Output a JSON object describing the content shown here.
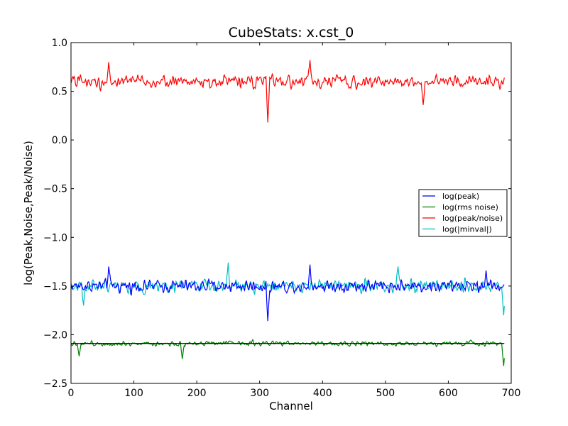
{
  "chart_data": {
    "type": "line",
    "title": "CubeStats: x.cst_0",
    "xlabel": "Channel",
    "ylabel": "log(Peak,Noise,Peak/Noise)",
    "xlim": [
      0,
      700
    ],
    "ylim": [
      -2.5,
      1.0
    ],
    "xticks": [
      0,
      100,
      200,
      300,
      400,
      500,
      600,
      700
    ],
    "yticks": [
      -2.5,
      -2.0,
      -1.5,
      -1.0,
      -0.5,
      0.0,
      0.5,
      1.0
    ],
    "xtick_labels": [
      "0",
      "100",
      "200",
      "300",
      "400",
      "500",
      "600",
      "700"
    ],
    "ytick_labels": [
      "−2.5",
      "−2.0",
      "−1.5",
      "−1.0",
      "−0.5",
      "0.0",
      "0.5",
      "1.0"
    ],
    "grid": false,
    "legend_position": "right",
    "n_channels": 690,
    "series": [
      {
        "name": "log(peak)",
        "color": "#0000ff",
        "mean": -1.5,
        "spread": 0.09,
        "features": [
          {
            "x": 60,
            "value": -1.3
          },
          {
            "x": 313,
            "value": -1.86
          },
          {
            "x": 380,
            "value": -1.28
          },
          {
            "x": 660,
            "value": -1.34
          }
        ]
      },
      {
        "name": "log(rms noise)",
        "color": "#008000",
        "mean": -2.09,
        "spread": 0.035,
        "features": [
          {
            "x": 13,
            "value": -2.22
          },
          {
            "x": 177,
            "value": -2.25
          },
          {
            "x": 688,
            "value": -2.32
          }
        ]
      },
      {
        "name": "log(peak/noise)",
        "color": "#ff0000",
        "mean": 0.6,
        "spread": 0.09,
        "features": [
          {
            "x": 60,
            "value": 0.8
          },
          {
            "x": 313,
            "value": 0.18
          },
          {
            "x": 380,
            "value": 0.82
          },
          {
            "x": 560,
            "value": 0.36
          }
        ]
      },
      {
        "name": "log(|minval|)",
        "color": "#00bfbf",
        "mean": -1.5,
        "spread": 0.09,
        "features": [
          {
            "x": 20,
            "value": -1.7
          },
          {
            "x": 250,
            "value": -1.26
          },
          {
            "x": 520,
            "value": -1.3
          },
          {
            "x": 688,
            "value": -1.8
          }
        ]
      }
    ],
    "reference_line": {
      "color": "#000000",
      "value": -2.09
    }
  }
}
